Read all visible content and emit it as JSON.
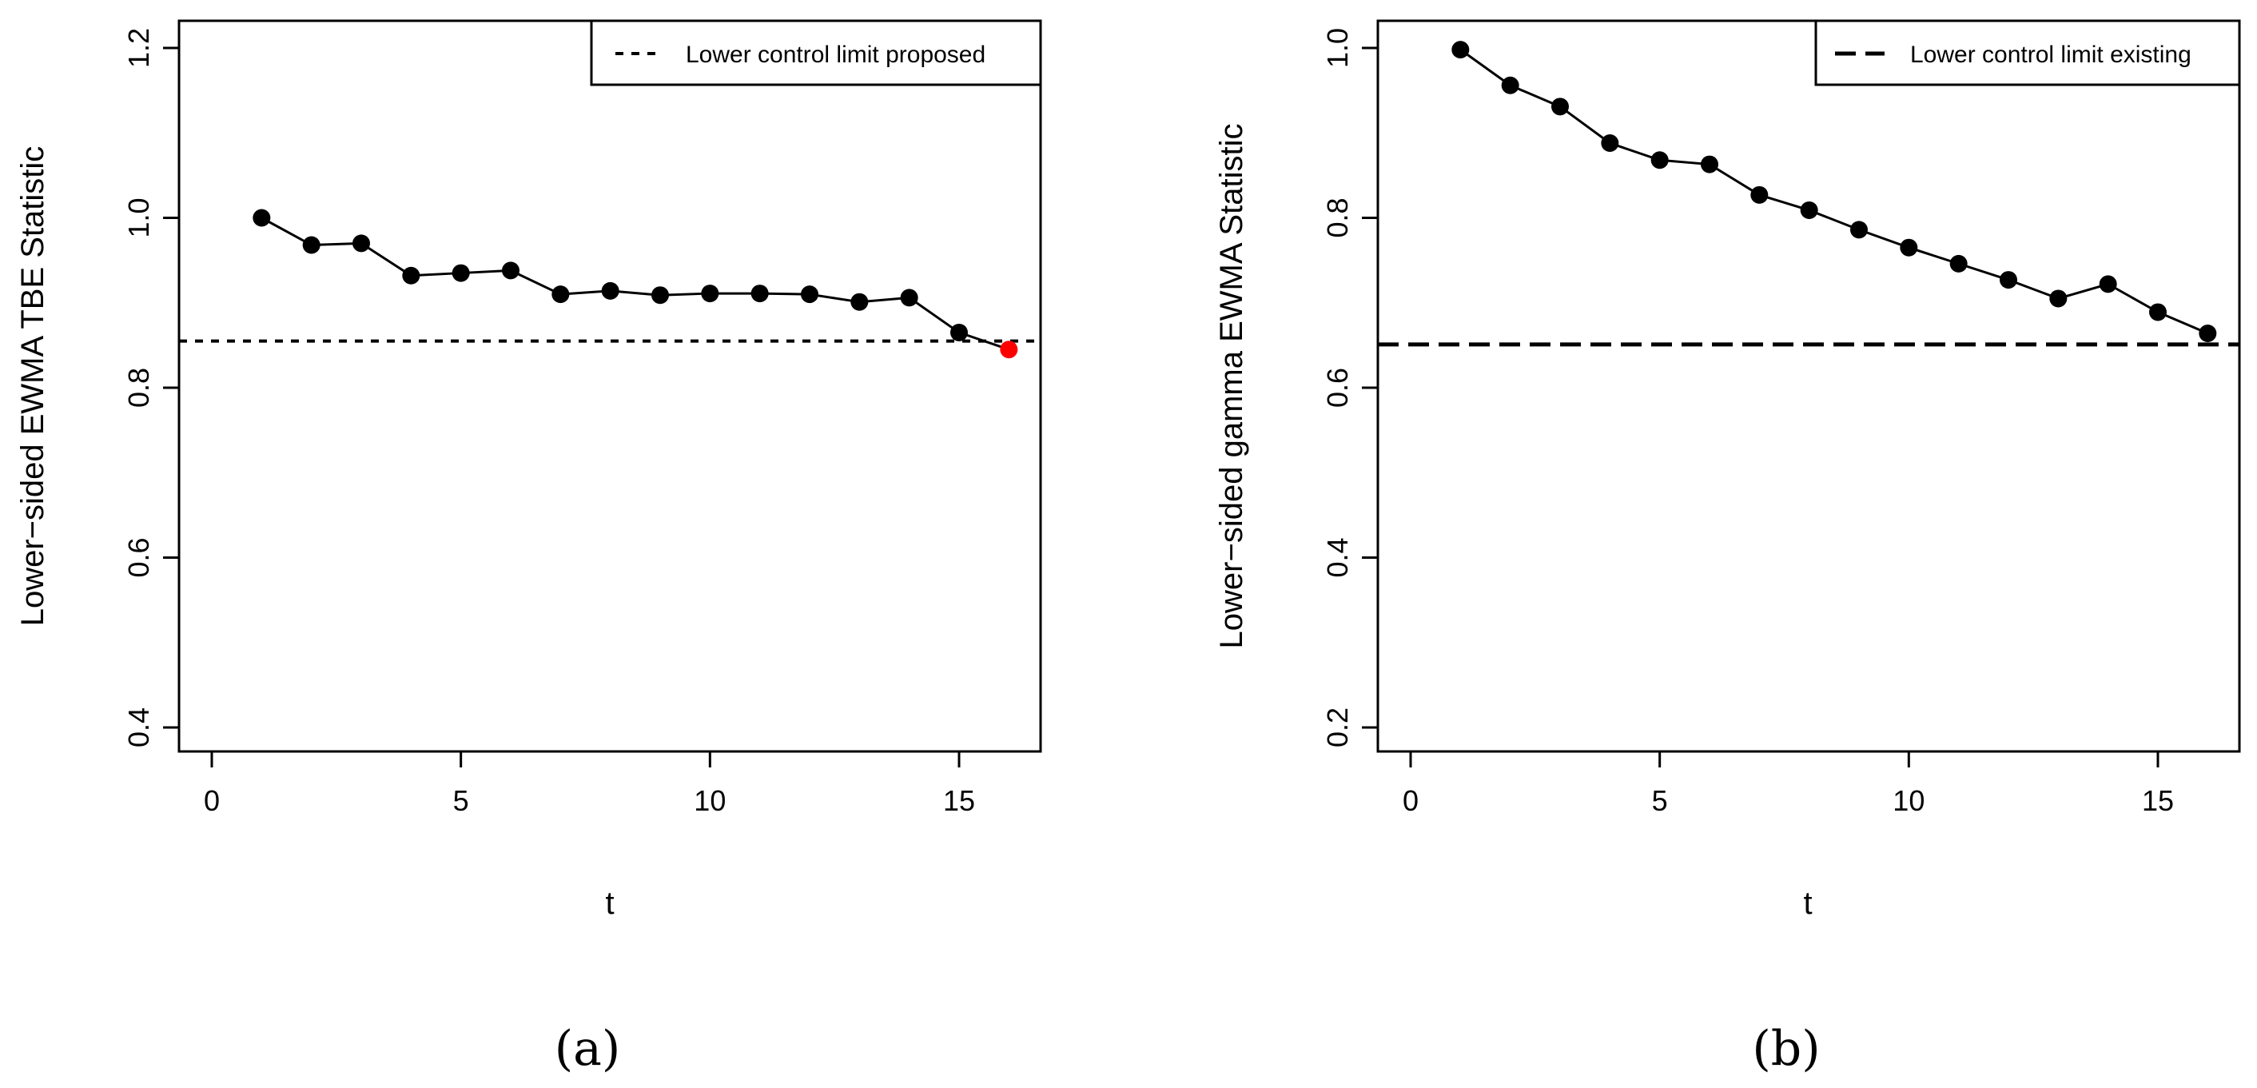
{
  "chart_data": [
    {
      "type": "line",
      "panel_label": "(a)",
      "xlabel": "t",
      "ylabel": "Lower−sided EWMA TBE Statistic",
      "xlim": [
        0,
        16
      ],
      "ylim": [
        0.4,
        1.2
      ],
      "x_ticks": [
        0,
        5,
        10,
        15
      ],
      "y_ticks": [
        0.4,
        0.6,
        0.8,
        1.0,
        1.2
      ],
      "y_tick_labels": [
        "0.4",
        "0.6",
        "0.8",
        "1.0",
        "1.2"
      ],
      "x_tick_labels": [
        "0",
        "5",
        "10",
        "15"
      ],
      "series": [
        {
          "name": "Lower-sided EWMA TBE Statistic",
          "x": [
            1,
            2,
            3,
            4,
            5,
            6,
            7,
            8,
            9,
            10,
            11,
            12,
            13,
            14,
            15,
            16
          ],
          "values": [
            1.0,
            0.968,
            0.97,
            0.932,
            0.935,
            0.938,
            0.91,
            0.914,
            0.909,
            0.911,
            0.911,
            0.91,
            0.901,
            0.906,
            0.865,
            0.845
          ],
          "point_colors": [
            "#000000",
            "#000000",
            "#000000",
            "#000000",
            "#000000",
            "#000000",
            "#000000",
            "#000000",
            "#000000",
            "#000000",
            "#000000",
            "#000000",
            "#000000",
            "#000000",
            "#000000",
            "#ff0000"
          ]
        }
      ],
      "control_limit": {
        "value": 0.855,
        "style": "dotted-dash",
        "label": "Lower control limit proposed"
      },
      "legend_position": "top-right"
    },
    {
      "type": "line",
      "panel_label": "(b)",
      "xlabel": "t",
      "ylabel": "Lower−sided gamma EWMA Statistic",
      "xlim": [
        0,
        16
      ],
      "ylim": [
        0.2,
        1.0
      ],
      "x_ticks": [
        0,
        5,
        10,
        15
      ],
      "y_ticks": [
        0.2,
        0.4,
        0.6,
        0.8,
        1.0
      ],
      "y_tick_labels": [
        "0.2",
        "0.4",
        "0.6",
        "0.8",
        "1.0"
      ],
      "x_tick_labels": [
        "0",
        "5",
        "10",
        "15"
      ],
      "series": [
        {
          "name": "Lower-sided gamma EWMA Statistic",
          "x": [
            1,
            2,
            3,
            4,
            5,
            6,
            7,
            8,
            9,
            10,
            11,
            12,
            13,
            14,
            15,
            16
          ],
          "values": [
            0.998,
            0.956,
            0.931,
            0.888,
            0.868,
            0.863,
            0.827,
            0.809,
            0.786,
            0.765,
            0.746,
            0.727,
            0.705,
            0.722,
            0.689,
            0.664
          ],
          "point_colors": [
            "#000000",
            "#000000",
            "#000000",
            "#000000",
            "#000000",
            "#000000",
            "#000000",
            "#000000",
            "#000000",
            "#000000",
            "#000000",
            "#000000",
            "#000000",
            "#000000",
            "#000000",
            "#000000"
          ]
        }
      ],
      "control_limit": {
        "value": 0.651,
        "style": "long-dash",
        "label": "Lower control limit existing"
      },
      "legend_position": "top-right"
    }
  ]
}
